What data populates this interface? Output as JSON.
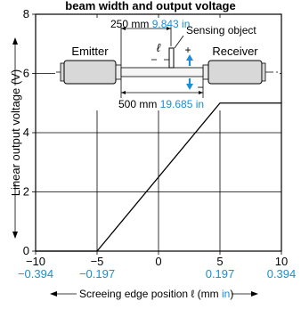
{
  "header": {
    "title": "beam width and output voltage"
  },
  "illustration": {
    "emitter_label": "Emitter",
    "receiver_label": "Receiver",
    "sensing_object_label": "Sensing object",
    "ell_symbol": "ℓ",
    "plus_symbol": "+",
    "minus_symbol": "−",
    "dim_top_mm": "250 mm",
    "dim_top_in": "9.843 in",
    "dim_bottom_mm": "500 mm",
    "dim_bottom_in": "19.685 in",
    "accent_color": "#1a8ed6"
  },
  "chart_data": {
    "type": "line",
    "title": "beam width and output voltage",
    "xlabel": "Screeing edge position ℓ (mm in)",
    "xlabel_main": "Screeing edge position ℓ (mm",
    "xlabel_unit_alt": "in",
    "xlabel_close": ")",
    "ylabel": "Linear output voltage (V)",
    "xlim": [
      -10,
      10
    ],
    "ylim": [
      0,
      8
    ],
    "x_ticks": [
      -10,
      -5,
      0,
      5,
      10
    ],
    "x_tick_labels": [
      "−10",
      "−5",
      "0",
      "5",
      "10"
    ],
    "x_tick_labels_in": [
      "−0.394",
      "−0.197",
      "",
      "0.197",
      "0.394"
    ],
    "y_ticks": [
      0,
      2,
      4,
      6,
      8
    ],
    "y_tick_labels": [
      "0",
      "2",
      "4",
      "6",
      "8"
    ],
    "grid": true,
    "series": [
      {
        "x": [
          -10,
          -5,
          5,
          10
        ],
        "y": [
          0,
          0,
          5,
          5
        ],
        "color": "#000000"
      }
    ]
  }
}
